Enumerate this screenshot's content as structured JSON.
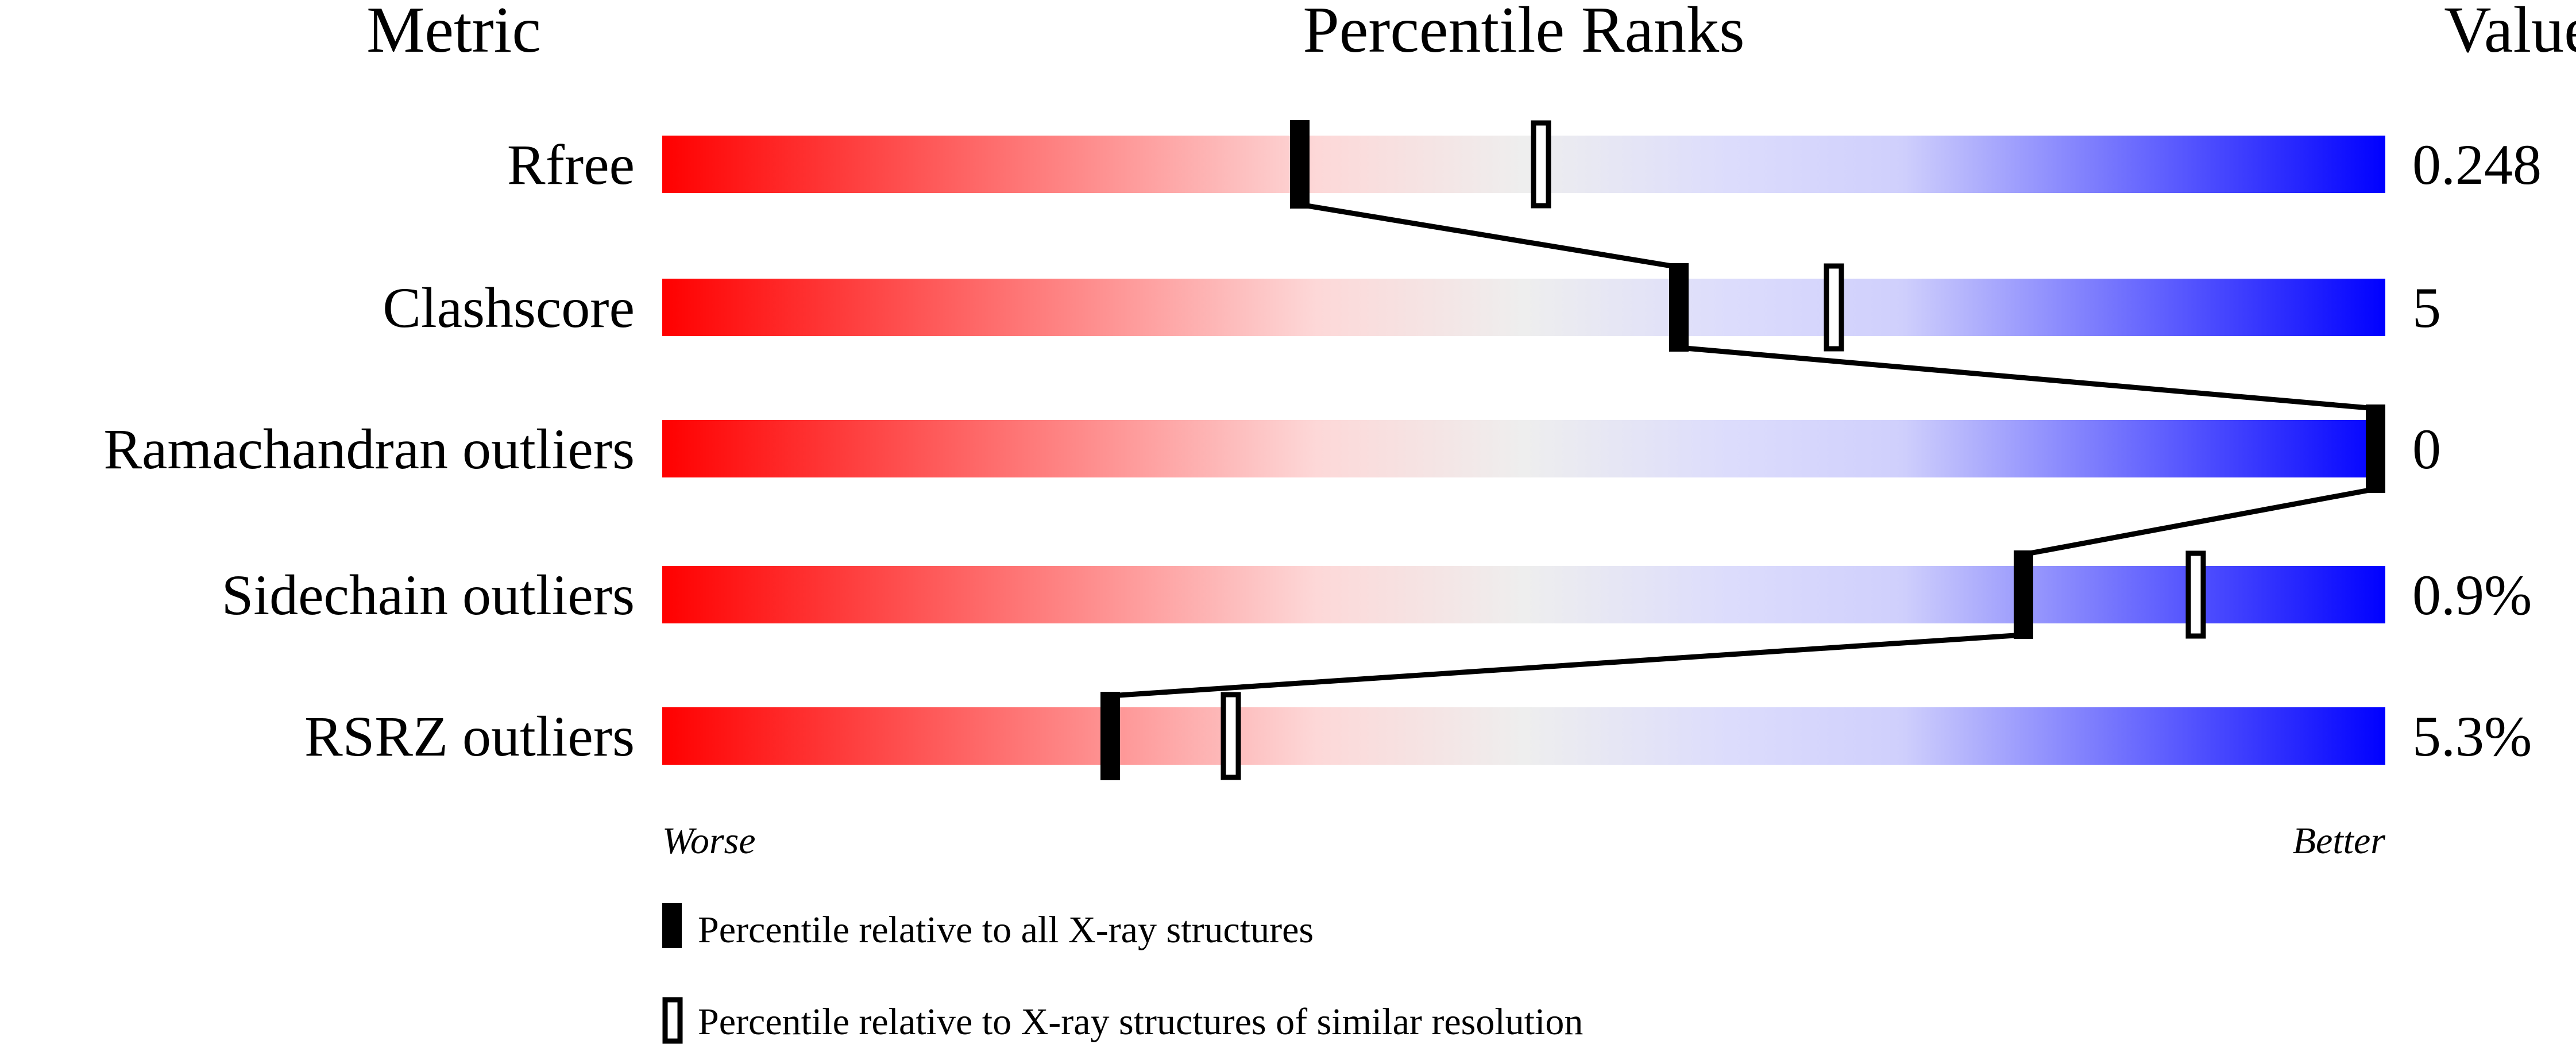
{
  "chart_data": {
    "type": "percentile-bar",
    "headers": {
      "metric": "Metric",
      "ranks": "Percentile Ranks",
      "value": "Value"
    },
    "xlim": [
      0,
      100
    ],
    "rows": [
      {
        "metric": "Rfree",
        "value": "0.248",
        "percentile_all": 37,
        "percentile_similar": 51
      },
      {
        "metric": "Clashscore",
        "value": "5",
        "percentile_all": 59,
        "percentile_similar": 68
      },
      {
        "metric": "Ramachandran outliers",
        "value": "0",
        "percentile_all": 100,
        "percentile_similar": 100
      },
      {
        "metric": "Sidechain outliers",
        "value": "0.9%",
        "percentile_all": 79,
        "percentile_similar": 89
      },
      {
        "metric": "RSRZ outliers",
        "value": "5.3%",
        "percentile_all": 26,
        "percentile_similar": 33
      }
    ],
    "axis_left": "Worse",
    "axis_right": "Better",
    "legend": [
      {
        "marker": "filled",
        "label": "Percentile relative to all X-ray structures"
      },
      {
        "marker": "hollow",
        "label": "Percentile relative to X-ray structures of similar resolution"
      }
    ],
    "colors": {
      "worse": "#ff0000",
      "middle": "#eeeeee",
      "better": "#0000ff",
      "marker": "#000000"
    }
  }
}
